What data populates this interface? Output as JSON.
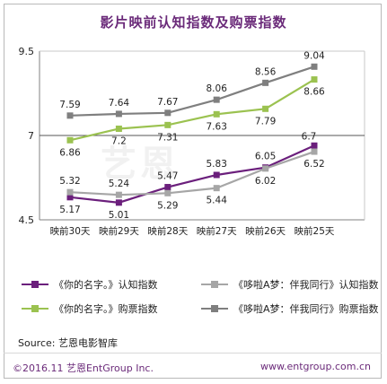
{
  "title": "影片映前认知指数及购票指数",
  "source": "Source: 艺恩电影智库",
  "footer_left": "©2016.11 艺恩EntGroup Inc.",
  "footer_right": "www.entgroup.com.cn",
  "watermark": "艺恩",
  "chart_data": {
    "type": "line",
    "categories": [
      "映前30天",
      "映前29天",
      "映前28天",
      "映前27天",
      "映前26天",
      "映前25天"
    ],
    "ylim": [
      4.5,
      9.5
    ],
    "yticks": [
      4.5,
      7,
      9.5
    ],
    "ytick_labels": [
      "4.5",
      "7",
      "9.5"
    ],
    "legend_position": "bottom",
    "series": [
      {
        "name": "《你的名字。》认知指数",
        "values": [
          5.17,
          5.01,
          5.47,
          5.83,
          6.05,
          6.7
        ],
        "color": "#6b1f7c"
      },
      {
        "name": "《哆啦A梦：伴我同行》认知指数",
        "values": [
          5.32,
          5.24,
          5.29,
          5.44,
          6.02,
          6.52
        ],
        "color": "#a6a6a6"
      },
      {
        "name": "《你的名字。》购票指数",
        "values": [
          6.86,
          7.2,
          7.31,
          7.63,
          7.79,
          8.66
        ],
        "color": "#9bc250"
      },
      {
        "name": "《哆啦A梦：伴我同行》购票指数",
        "values": [
          7.59,
          7.64,
          7.67,
          8.06,
          8.56,
          9.04
        ],
        "color": "#7f7f7f"
      }
    ],
    "data_label_positions": [
      [
        "below",
        "below",
        "above",
        "above",
        "above",
        "above"
      ],
      [
        "above",
        "above",
        "below",
        "below",
        "below",
        "below"
      ],
      [
        "below",
        "below",
        "below",
        "below",
        "below",
        "below"
      ],
      [
        "above",
        "above",
        "above",
        "above",
        "above",
        "above"
      ]
    ]
  }
}
